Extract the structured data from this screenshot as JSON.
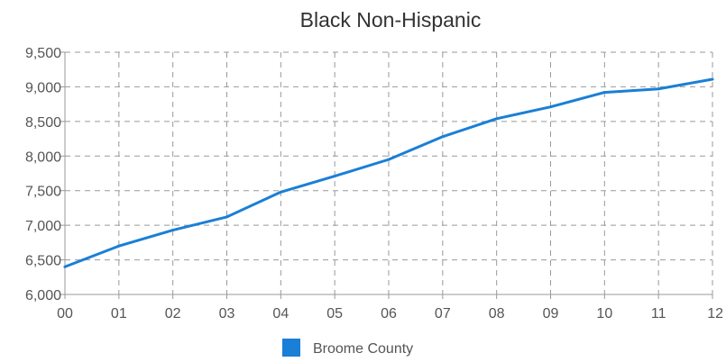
{
  "chart_data": {
    "type": "line",
    "title": "Black Non-Hispanic",
    "xlabel": "",
    "ylabel": "",
    "categories": [
      "00",
      "01",
      "02",
      "03",
      "04",
      "05",
      "06",
      "07",
      "08",
      "09",
      "10",
      "11",
      "12"
    ],
    "y_ticks": [
      "6,000",
      "6,500",
      "7,000",
      "7,500",
      "8,000",
      "8,500",
      "9,000",
      "9,500"
    ],
    "ylim": [
      6000,
      9500
    ],
    "grid": true,
    "legend": "bottom-center",
    "series": [
      {
        "name": "Broome County",
        "color": "#1a7fd6",
        "values": [
          6400,
          6700,
          6930,
          7120,
          7480,
          7710,
          7950,
          8280,
          8540,
          8710,
          8920,
          8970,
          9110
        ]
      }
    ]
  }
}
